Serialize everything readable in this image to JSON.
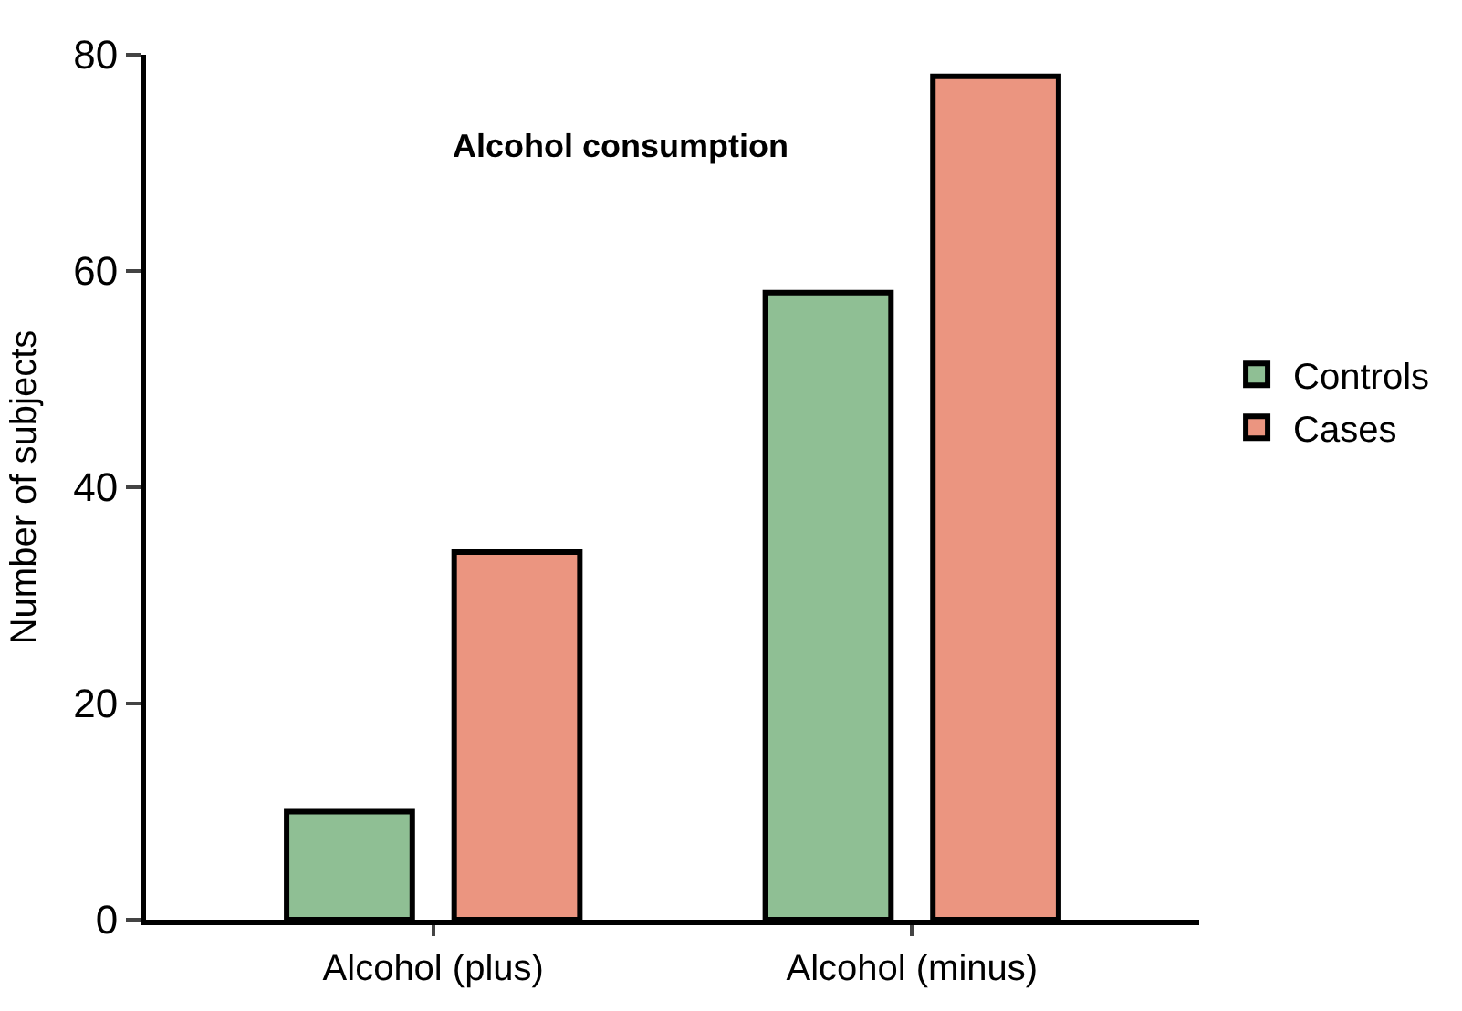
{
  "chart_data": {
    "type": "bar",
    "title": "Alcohol consumption",
    "ylabel": "Number of subjects",
    "categories": [
      "Alcohol (plus)",
      "Alcohol (minus)"
    ],
    "series": [
      {
        "name": "Controls",
        "color": "#8fbf94",
        "values": [
          10,
          58
        ]
      },
      {
        "name": "Cases",
        "color": "#eb9580",
        "values": [
          34,
          78
        ]
      }
    ],
    "ylim": [
      0,
      80
    ],
    "yticks": [
      0,
      20,
      40,
      60,
      80
    ],
    "grid": false,
    "legend": "right"
  }
}
